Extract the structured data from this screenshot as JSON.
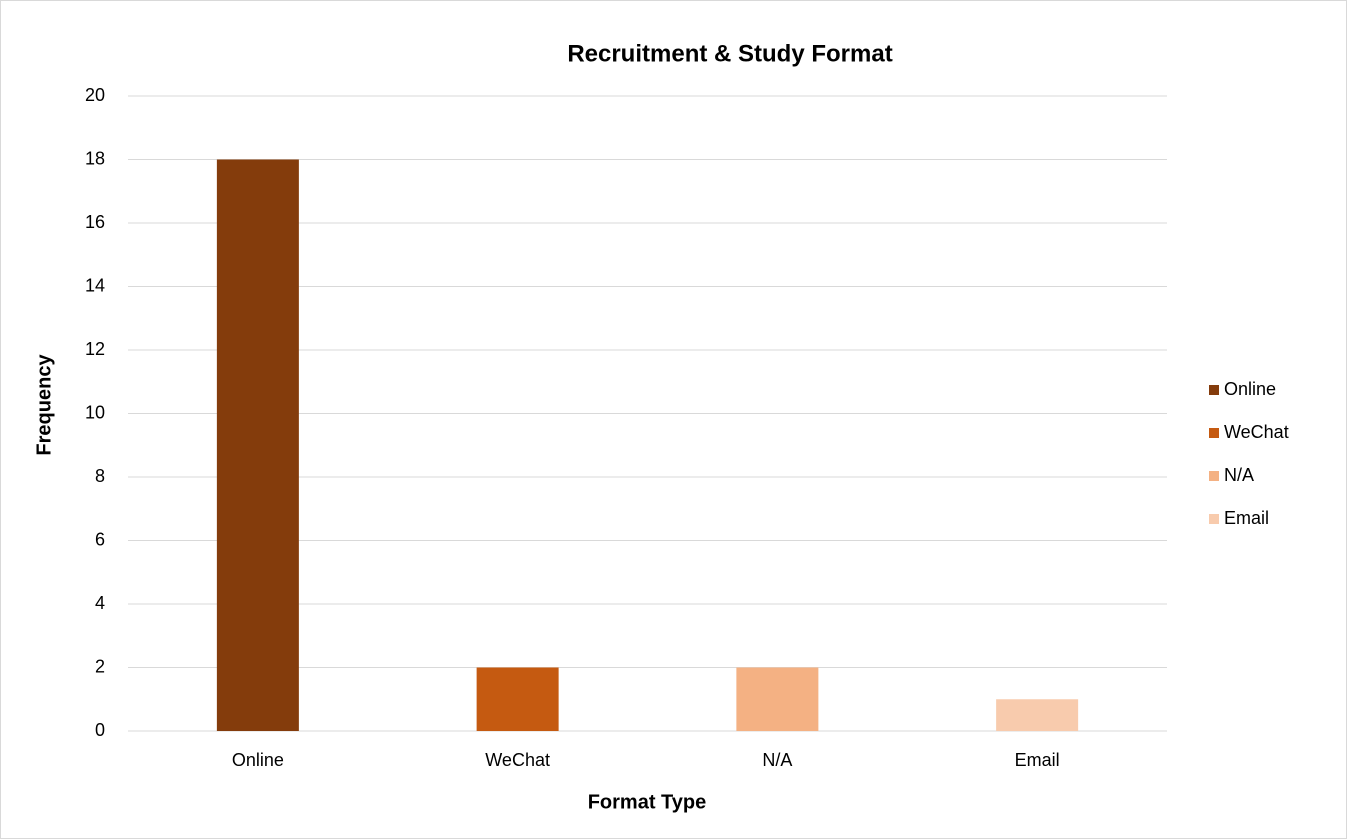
{
  "chart_data": {
    "type": "bar",
    "title": "Recruitment & Study Format",
    "x_label": "Format Type",
    "y_label": "Frequency",
    "categories": [
      "Online",
      "WeChat",
      "N/A",
      "Email"
    ],
    "values": [
      18,
      2,
      2,
      1
    ],
    "colors": [
      "#843c0c",
      "#c55a11",
      "#f4b183",
      "#f8cbad"
    ],
    "ylim": [
      0,
      20
    ],
    "yticks": [
      0,
      2,
      4,
      6,
      8,
      10,
      12,
      14,
      16,
      18,
      20
    ],
    "grid": true,
    "legend": "right"
  }
}
